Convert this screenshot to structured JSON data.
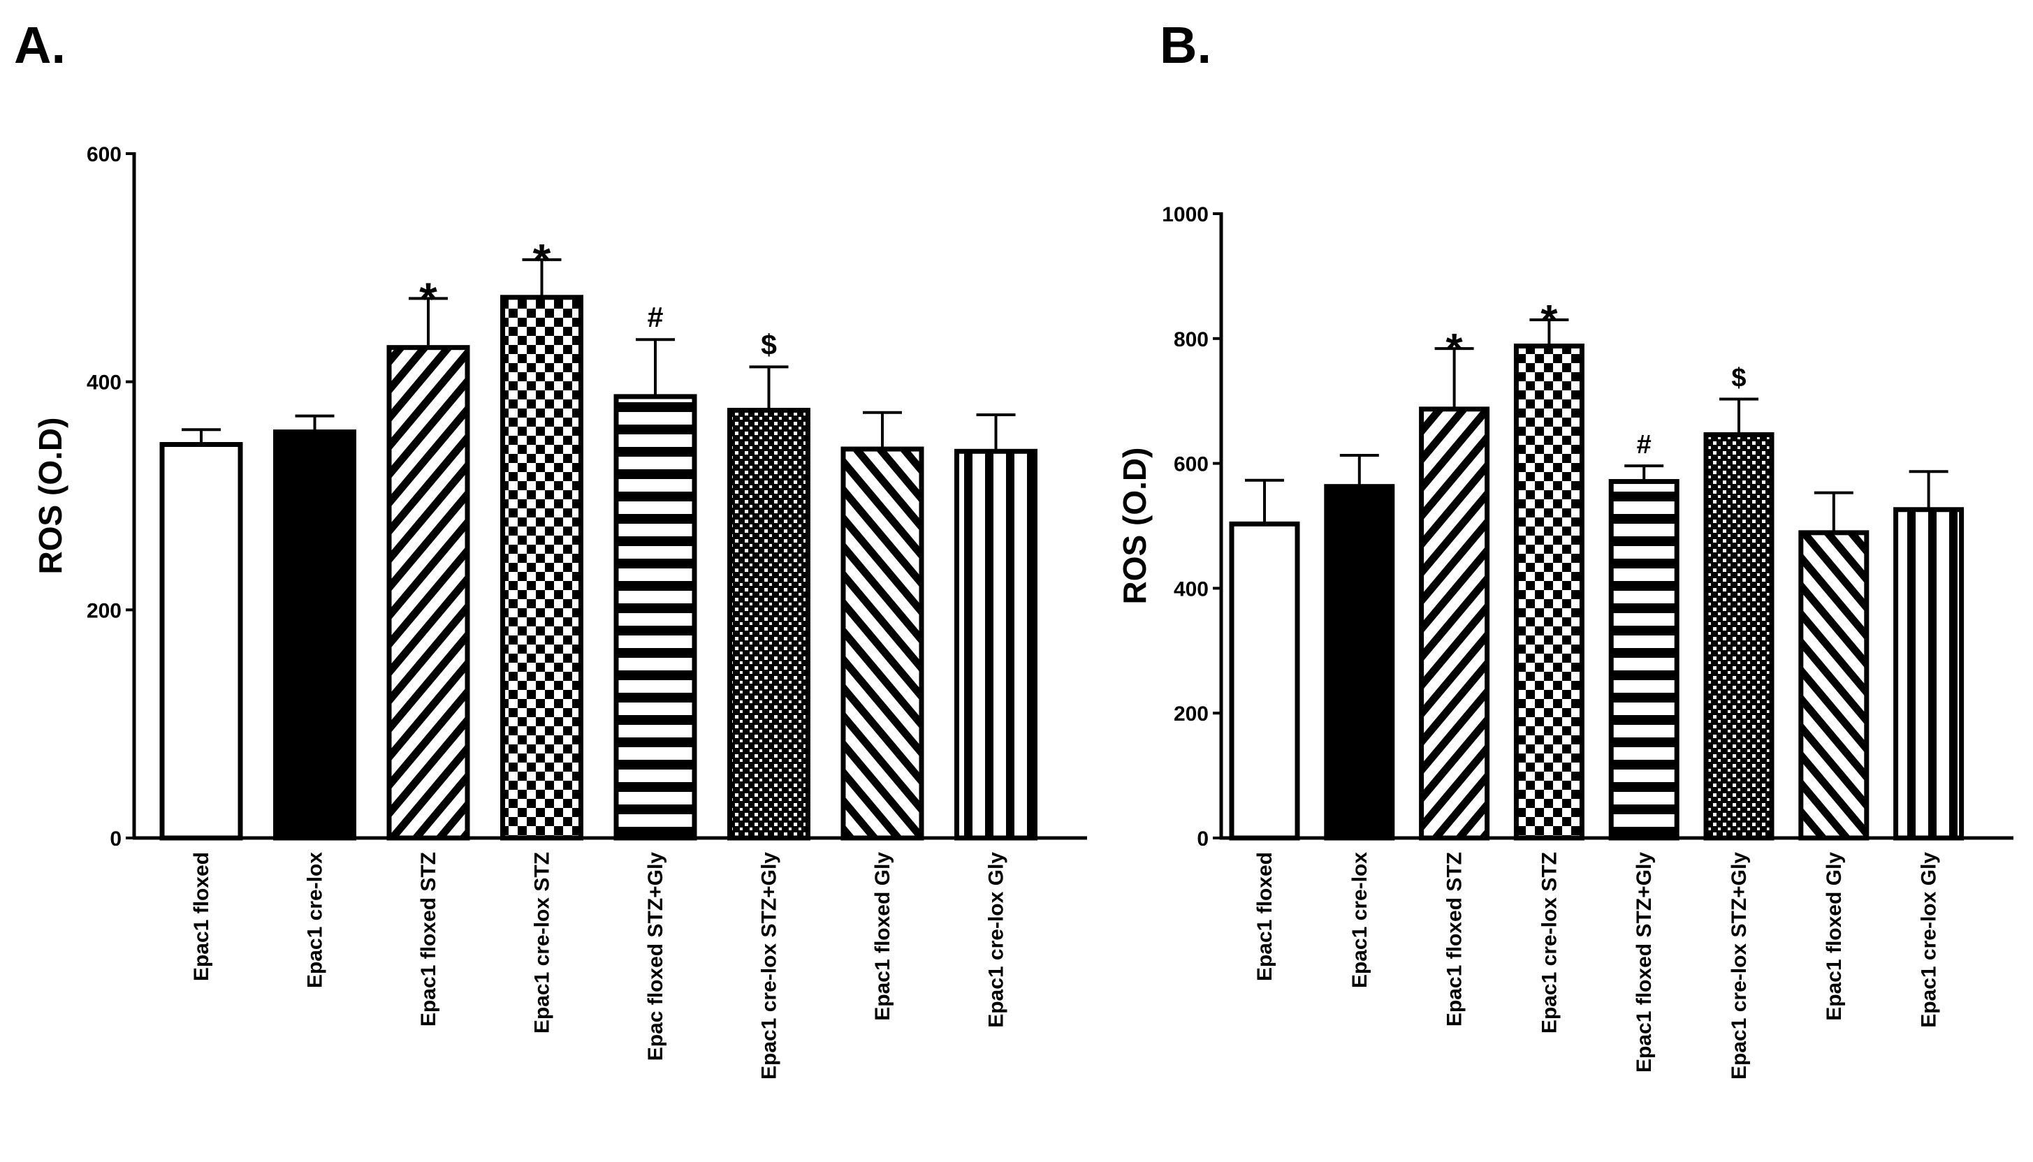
{
  "chart_data": [
    {
      "type": "bar",
      "panel_label": "A.",
      "ylabel": "ROS  (O.D)",
      "xlabel": "",
      "ylim": [
        0,
        600
      ],
      "yticks": [
        0,
        200,
        400,
        600
      ],
      "bars": [
        {
          "category": "Epac1 floxed",
          "value": 345,
          "error": 13,
          "pattern": "white",
          "annotation": ""
        },
        {
          "category": "Epac1 cre-lox",
          "value": 356,
          "error": 14,
          "pattern": "black",
          "annotation": ""
        },
        {
          "category": "Epac1 floxed STZ",
          "value": 430,
          "error": 43,
          "pattern": "diag-up",
          "annotation": "*"
        },
        {
          "category": "Epac1 cre-lox STZ",
          "value": 474,
          "error": 33,
          "pattern": "checker",
          "annotation": "*"
        },
        {
          "category": "Epac floxed STZ+Gly",
          "value": 387,
          "error": 50,
          "pattern": "horizontal",
          "annotation": "#"
        },
        {
          "category": "Epac1 cre-lox STZ+Gly",
          "value": 375,
          "error": 38,
          "pattern": "fine-checker",
          "annotation": "$"
        },
        {
          "category": "Epac1 floxed Gly",
          "value": 341,
          "error": 32,
          "pattern": "diag-down",
          "annotation": ""
        },
        {
          "category": "Epac1 cre-lox Gly",
          "value": 339,
          "error": 32,
          "pattern": "vertical",
          "annotation": ""
        }
      ]
    },
    {
      "type": "bar",
      "panel_label": "B.",
      "ylabel": "ROS  (O.D)",
      "xlabel": "",
      "ylim": [
        0,
        1000
      ],
      "yticks": [
        0,
        200,
        400,
        600,
        800,
        1000
      ],
      "bars": [
        {
          "category": "Epac1 floxed",
          "value": 503,
          "error": 70,
          "pattern": "white",
          "annotation": ""
        },
        {
          "category": "Epac1 cre-lox",
          "value": 563,
          "error": 50,
          "pattern": "black",
          "annotation": ""
        },
        {
          "category": "Epac1 floxed STZ",
          "value": 687,
          "error": 97,
          "pattern": "diag-up",
          "annotation": "*"
        },
        {
          "category": "Epac1 cre-lox STZ",
          "value": 788,
          "error": 42,
          "pattern": "checker",
          "annotation": "*"
        },
        {
          "category": "Epac1 floxed STZ+Gly",
          "value": 571,
          "error": 25,
          "pattern": "horizontal",
          "annotation": "#"
        },
        {
          "category": "Epac1 cre-lox STZ+Gly",
          "value": 646,
          "error": 57,
          "pattern": "fine-checker",
          "annotation": "$"
        },
        {
          "category": "Epac1 floxed Gly",
          "value": 489,
          "error": 64,
          "pattern": "diag-down",
          "annotation": ""
        },
        {
          "category": "Epac1 cre-lox Gly",
          "value": 526,
          "error": 61,
          "pattern": "vertical",
          "annotation": ""
        }
      ]
    }
  ]
}
